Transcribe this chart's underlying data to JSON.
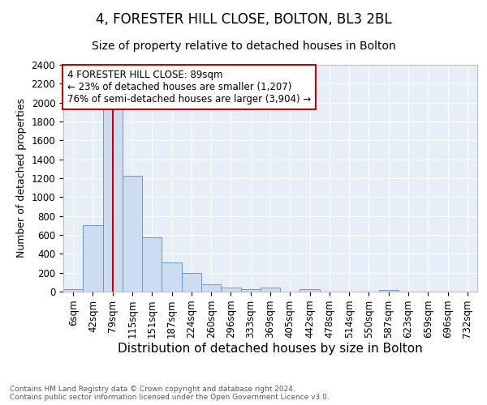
{
  "title": "4, FORESTER HILL CLOSE, BOLTON, BL3 2BL",
  "subtitle": "Size of property relative to detached houses in Bolton",
  "xlabel": "Distribution of detached houses by size in Bolton",
  "ylabel": "Number of detached properties",
  "categories": [
    "6sqm",
    "42sqm",
    "79sqm",
    "115sqm",
    "151sqm",
    "187sqm",
    "224sqm",
    "260sqm",
    "296sqm",
    "333sqm",
    "369sqm",
    "405sqm",
    "442sqm",
    "478sqm",
    "514sqm",
    "550sqm",
    "587sqm",
    "623sqm",
    "659sqm",
    "696sqm",
    "732sqm"
  ],
  "bar_heights": [
    25,
    700,
    1950,
    1225,
    575,
    305,
    200,
    80,
    45,
    30,
    40,
    0,
    25,
    0,
    0,
    0,
    20,
    0,
    0,
    0,
    0
  ],
  "bar_color": "#cddcf0",
  "bar_edge_color": "#6699cc",
  "red_line_index": 2,
  "ylim": [
    0,
    2400
  ],
  "yticks": [
    0,
    200,
    400,
    600,
    800,
    1000,
    1200,
    1400,
    1600,
    1800,
    2000,
    2200,
    2400
  ],
  "annotation_text": "4 FORESTER HILL CLOSE: 89sqm\n← 23% of detached houses are smaller (1,207)\n76% of semi-detached houses are larger (3,904) →",
  "annotation_box_color": "#ffffff",
  "annotation_border_color": "#cc0000",
  "footer_text": "Contains HM Land Registry data © Crown copyright and database right 2024.\nContains public sector information licensed under the Open Government Licence v3.0.",
  "background_color": "#e8eef8",
  "grid_color": "#ffffff",
  "title_fontsize": 12,
  "subtitle_fontsize": 10,
  "xlabel_fontsize": 11,
  "ylabel_fontsize": 9,
  "tick_fontsize": 8.5,
  "annot_fontsize": 8.5,
  "footer_fontsize": 6.5
}
